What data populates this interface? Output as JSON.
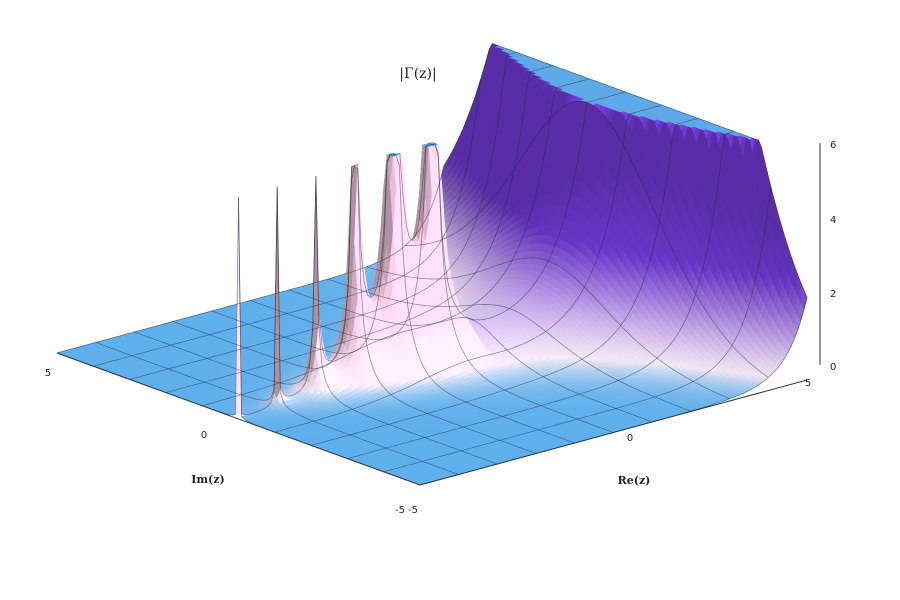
{
  "chart_data": {
    "type": "surface",
    "function": "|Γ(z)|",
    "title": "|Γ(z)|",
    "axes": {
      "re": {
        "label": "Re(z)",
        "range": [
          -5,
          5
        ],
        "ticks": [
          "-5",
          "0",
          "5"
        ]
      },
      "im": {
        "label": "Im(z)",
        "range": [
          -5,
          5
        ],
        "ticks": [
          "-5",
          "0",
          "5"
        ]
      },
      "z": {
        "range": [
          0,
          6
        ],
        "ticks": [
          "0",
          "2",
          "4",
          "6"
        ]
      }
    },
    "poles_re": [
      -4,
      -3,
      -2,
      -1,
      0
    ],
    "clip_z": 6,
    "grid": true,
    "colors": {
      "low": "#5fb0ec",
      "mid": "#f6eaf7",
      "pole": "#f5c9e1",
      "high": "#7a3fe6",
      "top": "#5fa9e8"
    }
  }
}
